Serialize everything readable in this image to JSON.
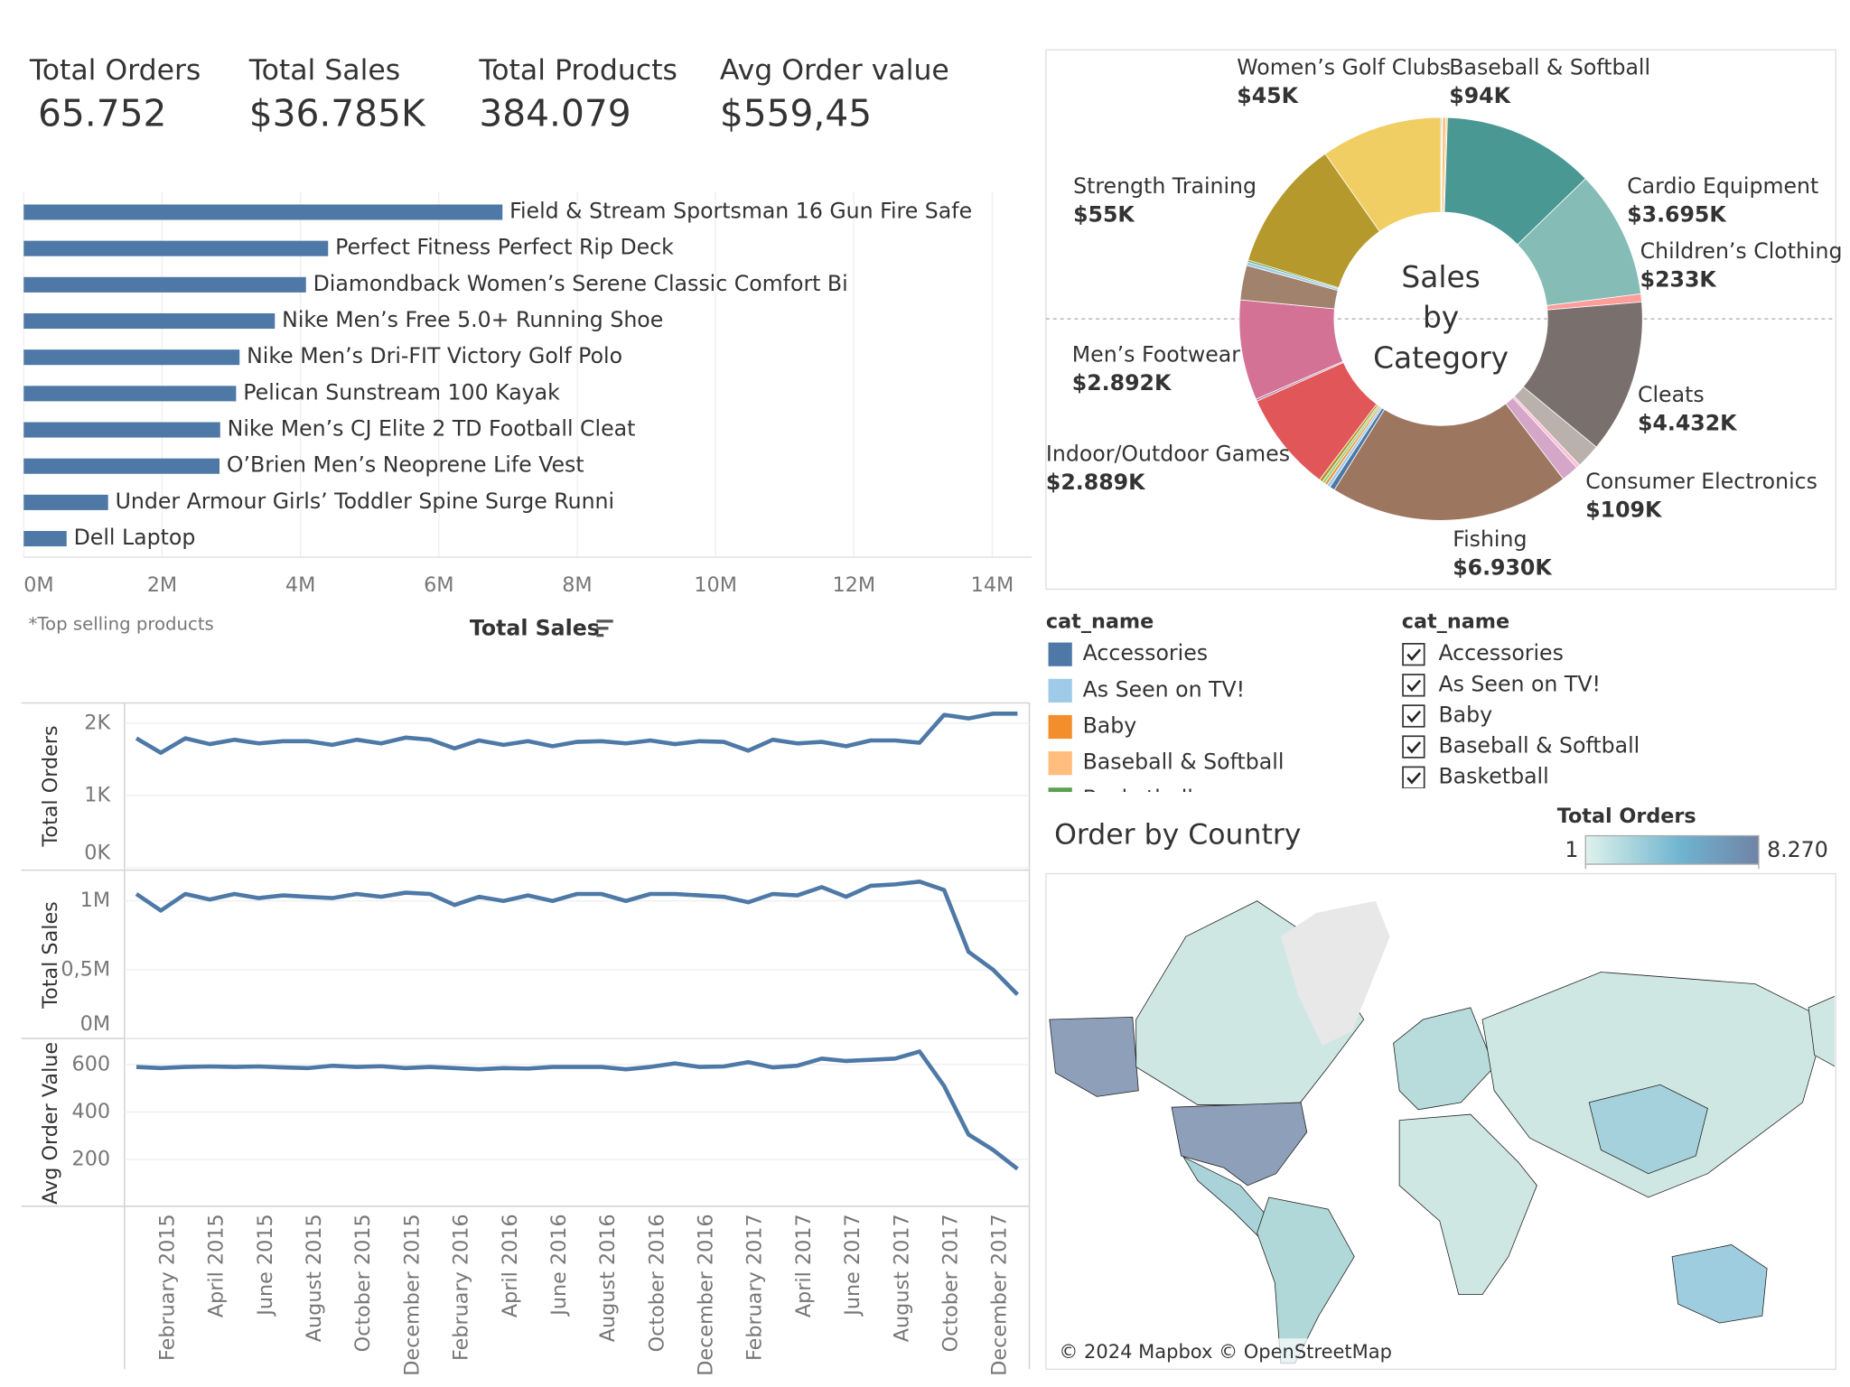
{
  "kpis": [
    {
      "label": "Total Orders",
      "value": "65.752"
    },
    {
      "label": "Total Sales",
      "value": "$36.785K"
    },
    {
      "label": "Total Products",
      "value": "384.079"
    },
    {
      "label": "Avg Order value",
      "value": "$559,45"
    }
  ],
  "chart_data": [
    {
      "type": "bar",
      "orientation": "horizontal",
      "categories": [
        "Field & Stream Sportsman 16 Gun Fire Safe",
        "Perfect Fitness Perfect Rip Deck",
        "Diamondback Women’s Serene Classic Comfort Bi",
        "Nike Men’s Free 5.0+ Running Shoe",
        "Nike Men’s Dri-FIT Victory Golf Polo",
        "Pelican Sunstream 100 Kayak",
        "Nike Men’s CJ Elite 2 TD Football Cleat",
        "O’Brien Men’s Neoprene Life Vest",
        "Under Armour Girls’ Toddler Spine Surge Runni",
        "Dell Laptop"
      ],
      "values": [
        6.92,
        4.4,
        4.08,
        3.63,
        3.12,
        3.07,
        2.84,
        2.83,
        1.22,
        0.62
      ],
      "color": "#4e79a7",
      "xlim": [
        0,
        14.57
      ],
      "xticks": [
        {
          "value": 0,
          "label": "0M"
        },
        {
          "value": 2,
          "label": "2M"
        },
        {
          "value": 4,
          "label": "4M"
        },
        {
          "value": 6,
          "label": "6M"
        },
        {
          "value": 8,
          "label": "8M"
        },
        {
          "value": 10,
          "label": "10M"
        },
        {
          "value": 12,
          "label": "12M"
        },
        {
          "value": 14,
          "label": "14M"
        }
      ],
      "x_label": "Total Sales",
      "note": "*Top selling products",
      "grid": true
    },
    {
      "type": "line",
      "categories": [
        null,
        "February 2015",
        null,
        "April 2015",
        null,
        "June 2015",
        null,
        "August 2015",
        null,
        "October 2015",
        null,
        "December 2015",
        null,
        "February 2016",
        null,
        "April 2016",
        null,
        "June 2016",
        null,
        "August 2016",
        null,
        "October 2016",
        null,
        "December 2016",
        null,
        "February 2017",
        null,
        "April 2017",
        null,
        "June 2017",
        null,
        "August 2017",
        null,
        "October 2017",
        null,
        "December 2017",
        null
      ],
      "series": [
        {
          "name": "Total Orders",
          "color": "#4e79a7",
          "ylim": [
            0,
            2262
          ],
          "yticks": [
            {
              "value": 0,
              "label": "0K"
            },
            {
              "value": 1000,
              "label": "1K"
            },
            {
              "value": 2000,
              "label": "2K"
            }
          ],
          "values": [
            1790,
            1590,
            1790,
            1710,
            1770,
            1720,
            1750,
            1750,
            1700,
            1770,
            1720,
            1800,
            1770,
            1650,
            1760,
            1700,
            1750,
            1680,
            1740,
            1750,
            1720,
            1760,
            1710,
            1750,
            1740,
            1620,
            1770,
            1720,
            1740,
            1680,
            1760,
            1760,
            1730,
            2115,
            2066,
            2131,
            2131
          ]
        },
        {
          "name": "Total Sales",
          "color": "#4e79a7",
          "ylim": [
            0,
            1.215
          ],
          "yticks": [
            {
              "value": 0,
              "label": "0M"
            },
            {
              "value": 0.5,
              "label": "0,5M"
            },
            {
              "value": 1,
              "label": "1M"
            }
          ],
          "values": [
            1.05,
            0.93,
            1.05,
            1.01,
            1.05,
            1.02,
            1.04,
            1.03,
            1.02,
            1.05,
            1.03,
            1.06,
            1.05,
            0.97,
            1.03,
            1.0,
            1.04,
            1.0,
            1.05,
            1.05,
            1.0,
            1.05,
            1.05,
            1.04,
            1.03,
            0.99,
            1.05,
            1.04,
            1.1,
            1.03,
            1.11,
            1.12,
            1.14,
            1.08,
            0.63,
            0.5,
            0.32
          ]
        },
        {
          "name": "Avg Order Value",
          "color": "#4e79a7",
          "ylim": [
            0,
            705
          ],
          "yticks": [
            200,
            400,
            600
          ],
          "values": [
            590,
            585,
            590,
            592,
            590,
            592,
            588,
            585,
            595,
            590,
            593,
            585,
            590,
            585,
            580,
            585,
            583,
            590,
            590,
            590,
            580,
            590,
            605,
            590,
            592,
            610,
            588,
            595,
            625,
            615,
            620,
            625,
            655,
            510,
            305,
            240,
            160
          ]
        }
      ],
      "grid": true
    },
    {
      "type": "pie",
      "donut": true,
      "center_label": [
        "Sales",
        "by",
        "Category"
      ],
      "categories": [
        null,
        null,
        "Baseball & Softball",
        "Women’s Golf Clubs",
        null,
        "Cardio Equipment",
        "Children’s Clothing",
        "Cleats",
        null,
        "Consumer Electronics",
        null,
        "Fishing",
        null,
        null,
        null,
        null,
        null,
        "Indoor/Outdoor Games",
        null,
        "Men’s Footwear",
        null,
        null,
        "Strength Training",
        null,
        null
      ],
      "values": [
        30,
        20,
        94,
        45,
        4400,
        3695,
        233,
        4432,
        700,
        109,
        500,
        6930,
        150,
        100,
        80,
        80,
        100,
        2889,
        60,
        2892,
        1000,
        100,
        55,
        3800,
        3500
      ],
      "value_labels": [
        null,
        null,
        "$94K",
        "$45K",
        null,
        "$3.695K",
        "$233K",
        "$4.432K",
        null,
        "$109K",
        null,
        "$6.930K",
        null,
        null,
        null,
        null,
        null,
        "$2.889K",
        null,
        "$2.892K",
        null,
        null,
        "$55K",
        null,
        null
      ],
      "colors": [
        "#4e79a7",
        "#a0cbe8",
        "#ffbe7d",
        "#f1ce63",
        "#499894",
        "#86bcb6",
        "#ff9d9a",
        "#79706e",
        "#bab0ac",
        "#fabfd2",
        "#d4a6c8",
        "#9d7660",
        "#4e79a7",
        "#a0cbe8",
        "#f28e2b",
        "#8cd17d",
        "#b6992d",
        "#e15759",
        "#b07aa1",
        "#d37295",
        "#a0826d",
        "#a0cbe8",
        "#59a14f",
        "#b6992d",
        "#f1ce63"
      ]
    }
  ],
  "legend": {
    "title": "cat_name",
    "items": [
      {
        "name": "Accessories",
        "color": "#4e79a7"
      },
      {
        "name": "As Seen on  TV!",
        "color": "#a0cbe8"
      },
      {
        "name": "Baby",
        "color": "#f28e2b"
      },
      {
        "name": "Baseball & Softball",
        "color": "#ffbe7d"
      },
      {
        "name": "Basketball",
        "color": "#59a14f"
      }
    ]
  },
  "filter": {
    "title": "cat_name",
    "items": [
      "Accessories",
      "As Seen on  TV!",
      "Baby",
      "Baseball & Softball",
      "Basketball"
    ]
  },
  "map": {
    "title": "Order by Country",
    "legend_title": "Total Orders",
    "range": [
      1,
      8270
    ],
    "ticks": [
      {
        "value": 1,
        "label": "1"
      },
      {
        "value": 8270,
        "label": "8.270"
      }
    ],
    "attribution": "© 2024 Mapbox © OpenStreetMap"
  }
}
